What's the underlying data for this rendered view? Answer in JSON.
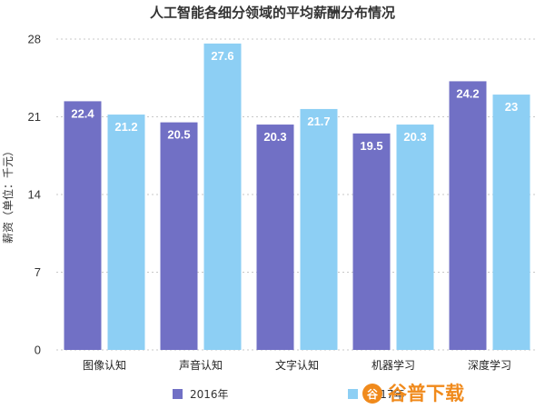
{
  "chart_data": {
    "type": "bar",
    "title": "人工智能各细分领域的平均薪酬分布情况",
    "ylabel": "薪资（单位：千元）",
    "xlabel": "",
    "ylim": [
      0,
      28
    ],
    "yticks": [
      0,
      7,
      14,
      21,
      28
    ],
    "grid": true,
    "legend_position": "bottom",
    "categories": [
      "图像认知",
      "声音认知",
      "文字认知",
      "机器学习",
      "深度学习"
    ],
    "series": [
      {
        "name": "2016年",
        "color": "#7170c5",
        "values": [
          22.4,
          20.5,
          20.3,
          19.5,
          24.2
        ]
      },
      {
        "name": "2017年",
        "color": "#8dcff4",
        "values": [
          21.2,
          27.6,
          21.7,
          20.3,
          23
        ]
      }
    ]
  },
  "watermark": {
    "text": "谷普下载",
    "color": "#f08a1c"
  }
}
